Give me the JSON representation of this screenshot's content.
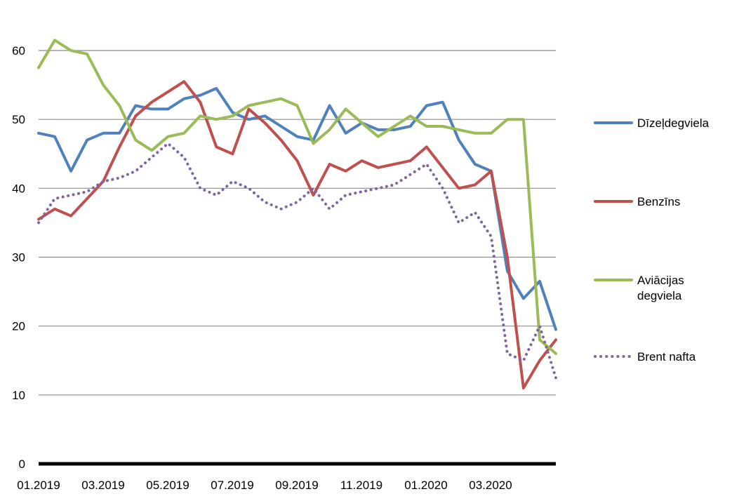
{
  "chart_data": {
    "type": "line",
    "title": "",
    "xlabel": "",
    "ylabel": "",
    "ylim": [
      0,
      60
    ],
    "yticks": [
      "0",
      "10",
      "20",
      "30",
      "40",
      "50",
      "60"
    ],
    "xticks": [
      "01.2019",
      "03.2019",
      "05.2019",
      "07.2019",
      "09.2019",
      "11.2019",
      "01.2020",
      "03.2020"
    ],
    "grid": "horizontal",
    "legend_position": "right",
    "x": [
      "01.2019",
      "01.2019a",
      "02.2019",
      "02.2019a",
      "03.2019",
      "03.2019a",
      "04.2019",
      "04.2019a",
      "05.2019",
      "05.2019a",
      "06.2019",
      "06.2019a",
      "07.2019",
      "07.2019a",
      "08.2019",
      "08.2019a",
      "09.2019",
      "09.2019a",
      "10.2019",
      "10.2019a",
      "11.2019",
      "11.2019a",
      "12.2019",
      "12.2019a",
      "01.2020",
      "01.2020a",
      "02.2020",
      "02.2020a",
      "03.2020",
      "03.2020a",
      "04.2020",
      "04.2020a",
      "04.2020b"
    ],
    "series": [
      {
        "name": "Dīzeļdegviela",
        "color": "#4F81BD",
        "style": "solid",
        "values": [
          48,
          47.5,
          42.5,
          47,
          48,
          48,
          52,
          51.5,
          51.5,
          53,
          53.5,
          54.5,
          51,
          50,
          50.5,
          49,
          47.5,
          47,
          52,
          48,
          49.5,
          48.5,
          48.5,
          49,
          52,
          52.5,
          47,
          43.5,
          42.5,
          28,
          24,
          26.5,
          19.5
        ]
      },
      {
        "name": "Benzīns",
        "color": "#C0504D",
        "style": "solid",
        "values": [
          35.5,
          37,
          36,
          38.5,
          41,
          46,
          50.5,
          52.5,
          54,
          55.5,
          52.5,
          46,
          45,
          51.5,
          49.5,
          47,
          44,
          39,
          43.5,
          42.5,
          44,
          43,
          43.5,
          44,
          46,
          43,
          40,
          40.5,
          42.5,
          30,
          11,
          15,
          18
        ]
      },
      {
        "name": "Aviācijas degviela",
        "color": "#9BBB59",
        "style": "solid",
        "values": [
          57.5,
          61.5,
          60,
          59.5,
          55,
          52,
          47,
          45.5,
          47.5,
          48,
          50.5,
          50,
          50.5,
          52,
          52.5,
          53,
          52,
          46.5,
          48.5,
          51.5,
          49.5,
          47.5,
          49,
          50.5,
          49,
          49,
          48.5,
          48,
          48,
          50,
          50,
          18,
          16
        ]
      },
      {
        "name": "Brent nafta",
        "color": "#8064A2",
        "style": "dotted",
        "values": [
          35,
          38.5,
          39,
          39.5,
          41,
          41.5,
          42.5,
          44.5,
          46.5,
          44.5,
          40,
          39,
          41,
          40,
          38,
          37,
          38,
          40,
          37,
          39,
          39.5,
          40,
          40.5,
          42,
          43.5,
          40,
          35,
          36.5,
          33,
          16,
          15,
          20,
          12.5
        ]
      }
    ]
  }
}
